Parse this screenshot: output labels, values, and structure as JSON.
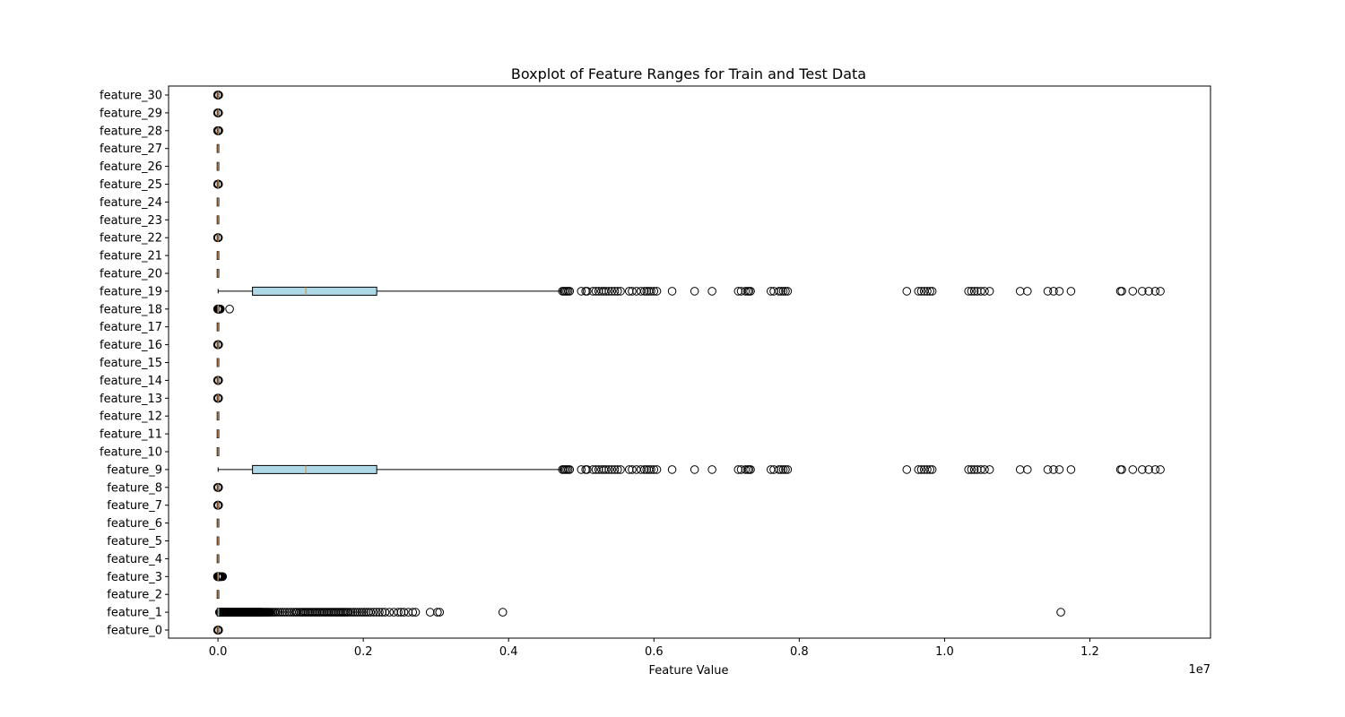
{
  "chart_data": {
    "type": "boxplot",
    "orientation": "horizontal",
    "title": "Boxplot of Feature Ranges for Train and Test Data",
    "xlabel": "Feature Value",
    "ylabel": "",
    "x_offset_label": "1e7",
    "xlim": [
      -0.068,
      1.366
    ],
    "x_scale_factor": 10000000,
    "x_ticks": [
      0,
      0.2,
      0.4,
      0.6,
      0.8,
      1.0,
      1.2
    ],
    "x_tick_labels": [
      "0.0",
      "0.2",
      "0.4",
      "0.6",
      "0.8",
      "1.0",
      "1.2"
    ],
    "categories": [
      "feature_0",
      "feature_1",
      "feature_2",
      "feature_3",
      "feature_4",
      "feature_5",
      "feature_6",
      "feature_7",
      "feature_8",
      "feature_9",
      "feature_10",
      "feature_11",
      "feature_12",
      "feature_13",
      "feature_14",
      "feature_15",
      "feature_16",
      "feature_17",
      "feature_18",
      "feature_19",
      "feature_20",
      "feature_21",
      "feature_22",
      "feature_23",
      "feature_24",
      "feature_25",
      "feature_26",
      "feature_27",
      "feature_28",
      "feature_29",
      "feature_30"
    ],
    "box_fill": "#add8e6",
    "median_color": "#ff7f0e",
    "boxes": [
      {
        "label": "feature_0",
        "whislo": 0,
        "q1": 0,
        "med": 0,
        "q3": 0,
        "whishi": 0.0003,
        "fliers": [
          -0.0006,
          -0.0004,
          0.0005,
          0.0007,
          0.0009
        ]
      },
      {
        "label": "feature_1",
        "whislo": 0.0003,
        "q1": 0.0003,
        "med": 0.0004,
        "q3": 0.0009,
        "whishi": 0.0018,
        "fliers": [
          0.002,
          0.0024,
          0.0028,
          0.0032,
          0.0036,
          0.004,
          0.0044,
          0.0048,
          0.0052,
          0.0056,
          0.006,
          0.0064,
          0.0068,
          0.0072,
          0.0076,
          0.008,
          0.0084,
          0.0088,
          0.0092,
          0.0096,
          0.01,
          0.0105,
          0.011,
          0.0115,
          0.012,
          0.0125,
          0.013,
          0.0135,
          0.014,
          0.0145,
          0.015,
          0.0155,
          0.016,
          0.0165,
          0.017,
          0.0175,
          0.018,
          0.0185,
          0.019,
          0.0195,
          0.02,
          0.0205,
          0.021,
          0.0215,
          0.022,
          0.0225,
          0.023,
          0.0235,
          0.024,
          0.0245,
          0.025,
          0.0255,
          0.026,
          0.0265,
          0.027,
          0.0275,
          0.028,
          0.0285,
          0.029,
          0.0295,
          0.03,
          0.0305,
          0.031,
          0.0315,
          0.032,
          0.0325,
          0.033,
          0.0335,
          0.034,
          0.0345,
          0.035,
          0.0355,
          0.036,
          0.0365,
          0.037,
          0.0375,
          0.038,
          0.0385,
          0.039,
          0.0395,
          0.04,
          0.0405,
          0.041,
          0.0415,
          0.042,
          0.0425,
          0.043,
          0.0435,
          0.044,
          0.0445,
          0.045,
          0.0455,
          0.046,
          0.0465,
          0.047,
          0.0475,
          0.048,
          0.0485,
          0.049,
          0.0495,
          0.05,
          0.0505,
          0.051,
          0.0515,
          0.052,
          0.0525,
          0.053,
          0.0535,
          0.054,
          0.0545,
          0.055,
          0.0555,
          0.056,
          0.0565,
          0.057,
          0.0575,
          0.058,
          0.0585,
          0.059,
          0.0595,
          0.06,
          0.061,
          0.062,
          0.063,
          0.064,
          0.065,
          0.066,
          0.067,
          0.068,
          0.069,
          0.07,
          0.071,
          0.072,
          0.074,
          0.076,
          0.078,
          0.08,
          0.083,
          0.086,
          0.089,
          0.092,
          0.095,
          0.098,
          0.101,
          0.104,
          0.107,
          0.109,
          0.112,
          0.114,
          0.116,
          0.118,
          0.12,
          0.122,
          0.124,
          0.126,
          0.128,
          0.13,
          0.132,
          0.134,
          0.136,
          0.138,
          0.14,
          0.142,
          0.144,
          0.146,
          0.148,
          0.15,
          0.152,
          0.154,
          0.156,
          0.158,
          0.16,
          0.162,
          0.164,
          0.166,
          0.168,
          0.17,
          0.172,
          0.174,
          0.176,
          0.178,
          0.18,
          0.183,
          0.186,
          0.189,
          0.192,
          0.195,
          0.198,
          0.201,
          0.204,
          0.207,
          0.21,
          0.214,
          0.218,
          0.222,
          0.226,
          0.23,
          0.236,
          0.242,
          0.248,
          0.252,
          0.256,
          0.262,
          0.268,
          0.272,
          0.292,
          0.302,
          0.305,
          0.392,
          1.16
        ]
      },
      {
        "label": "feature_2",
        "whislo": 0,
        "q1": 0,
        "med": 0,
        "q3": 0,
        "whishi": 0,
        "fliers": []
      },
      {
        "label": "feature_3",
        "whislo": 0,
        "q1": 0,
        "med": 0.0001,
        "q3": 0.0002,
        "whishi": 0.0004,
        "fliers": [
          -0.0007,
          -0.0005,
          0.0005,
          0.0008,
          0.0011,
          0.0014,
          0.0017,
          0.002,
          0.0024,
          0.0029,
          0.0034,
          0.004,
          0.0047,
          0.0055,
          0.0064
        ]
      },
      {
        "label": "feature_4",
        "whislo": 0,
        "q1": 0,
        "med": 0,
        "q3": 0,
        "whishi": 0,
        "fliers": []
      },
      {
        "label": "feature_5",
        "whislo": 0,
        "q1": 0,
        "med": 0,
        "q3": 0,
        "whishi": 0,
        "fliers": []
      },
      {
        "label": "feature_6",
        "whislo": 0,
        "q1": 0,
        "med": 0,
        "q3": 0,
        "whishi": 0,
        "fliers": []
      },
      {
        "label": "feature_7",
        "whislo": 0,
        "q1": 0,
        "med": 0,
        "q3": 0,
        "whishi": 0.0002,
        "fliers": [
          -0.0006,
          -0.0004,
          0.0004,
          0.0006,
          0.0008
        ]
      },
      {
        "label": "feature_8",
        "whislo": 0,
        "q1": 0,
        "med": 0,
        "q3": 0,
        "whishi": 0.0002,
        "fliers": [
          -0.0006,
          -0.0004,
          0.0004,
          0.0006,
          0.0008
        ]
      },
      {
        "label": "feature_9",
        "whislo": 0.0002,
        "q1": 0.0475,
        "med": 0.121,
        "q3": 0.2185,
        "whishi": 0.472,
        "fliers": [
          0.474,
          0.476,
          0.478,
          0.48,
          0.482,
          0.484,
          0.5,
          0.506,
          0.508,
          0.516,
          0.52,
          0.524,
          0.528,
          0.531,
          0.534,
          0.538,
          0.542,
          0.546,
          0.55,
          0.554,
          0.566,
          0.57,
          0.576,
          0.582,
          0.587,
          0.59,
          0.593,
          0.596,
          0.6,
          0.604,
          0.625,
          0.656,
          0.68,
          0.716,
          0.72,
          0.726,
          0.729,
          0.731,
          0.733,
          0.761,
          0.765,
          0.772,
          0.775,
          0.778,
          0.781,
          0.784,
          0.948,
          0.964,
          0.968,
          0.972,
          0.976,
          0.98,
          0.983,
          1.033,
          1.037,
          1.041,
          1.045,
          1.05,
          1.055,
          1.062,
          1.104,
          1.114,
          1.142,
          1.15,
          1.158,
          1.174,
          1.242,
          1.244,
          1.259,
          1.272,
          1.281,
          1.29,
          1.297
        ]
      },
      {
        "label": "feature_10",
        "whislo": 0,
        "q1": 0,
        "med": 0,
        "q3": 0,
        "whishi": 0,
        "fliers": []
      },
      {
        "label": "feature_11",
        "whislo": 0,
        "q1": 0,
        "med": 0,
        "q3": 0,
        "whishi": 0,
        "fliers": []
      },
      {
        "label": "feature_12",
        "whislo": 0,
        "q1": 0,
        "med": 0,
        "q3": 0,
        "whishi": 0,
        "fliers": []
      },
      {
        "label": "feature_13",
        "whislo": 0,
        "q1": 0,
        "med": 0,
        "q3": 0,
        "whishi": 0.0002,
        "fliers": [
          -0.0006,
          -0.0004,
          0.0004,
          0.0006,
          0.0008
        ]
      },
      {
        "label": "feature_14",
        "whislo": 0,
        "q1": 0,
        "med": 0,
        "q3": 0,
        "whishi": 0.0002,
        "fliers": [
          -0.0006,
          -0.0004,
          0.0004,
          0.0006,
          0.0009
        ]
      },
      {
        "label": "feature_15",
        "whislo": 0,
        "q1": 0,
        "med": 0,
        "q3": 0,
        "whishi": 0,
        "fliers": []
      },
      {
        "label": "feature_16",
        "whislo": 0,
        "q1": 0,
        "med": 0,
        "q3": 0,
        "whishi": 0.0002,
        "fliers": [
          -0.0006,
          -0.0004,
          0.0004,
          0.0006,
          0.0009
        ]
      },
      {
        "label": "feature_17",
        "whislo": 0,
        "q1": 0,
        "med": 0,
        "q3": 0,
        "whishi": 0,
        "fliers": []
      },
      {
        "label": "feature_18",
        "whislo": 0,
        "q1": 0,
        "med": 0.0001,
        "q3": 0.0002,
        "whishi": 0.0004,
        "fliers": [
          -0.0006,
          -0.0004,
          0.0005,
          0.0008,
          0.0011,
          0.0014,
          0.0017,
          0.002,
          0.0024,
          0.0028,
          0.0033,
          0.016
        ]
      },
      {
        "label": "feature_19",
        "whislo": 0.0002,
        "q1": 0.0475,
        "med": 0.121,
        "q3": 0.2185,
        "whishi": 0.472,
        "fliers": [
          0.474,
          0.476,
          0.478,
          0.48,
          0.482,
          0.484,
          0.5,
          0.506,
          0.508,
          0.516,
          0.52,
          0.524,
          0.528,
          0.531,
          0.534,
          0.538,
          0.542,
          0.546,
          0.55,
          0.554,
          0.566,
          0.57,
          0.576,
          0.582,
          0.587,
          0.59,
          0.593,
          0.596,
          0.6,
          0.604,
          0.625,
          0.656,
          0.68,
          0.716,
          0.72,
          0.726,
          0.729,
          0.731,
          0.733,
          0.761,
          0.765,
          0.772,
          0.775,
          0.778,
          0.781,
          0.784,
          0.948,
          0.964,
          0.968,
          0.972,
          0.976,
          0.98,
          0.983,
          1.033,
          1.037,
          1.041,
          1.045,
          1.05,
          1.055,
          1.062,
          1.104,
          1.114,
          1.142,
          1.15,
          1.158,
          1.174,
          1.242,
          1.244,
          1.259,
          1.272,
          1.281,
          1.29,
          1.297
        ]
      },
      {
        "label": "feature_20",
        "whislo": 0,
        "q1": 0,
        "med": 0,
        "q3": 0,
        "whishi": 0,
        "fliers": []
      },
      {
        "label": "feature_21",
        "whislo": 0,
        "q1": 0,
        "med": 0,
        "q3": 0,
        "whishi": 0,
        "fliers": []
      },
      {
        "label": "feature_22",
        "whislo": 0,
        "q1": 0,
        "med": 0,
        "q3": 0,
        "whishi": 0.0002,
        "fliers": [
          -0.0006,
          -0.0004,
          0.0004,
          0.0006
        ]
      },
      {
        "label": "feature_23",
        "whislo": 0,
        "q1": 0,
        "med": 0,
        "q3": 0,
        "whishi": 0,
        "fliers": []
      },
      {
        "label": "feature_24",
        "whislo": 0,
        "q1": 0,
        "med": 0,
        "q3": 0,
        "whishi": 0,
        "fliers": []
      },
      {
        "label": "feature_25",
        "whislo": 0,
        "q1": 0,
        "med": 0,
        "q3": 0,
        "whishi": 0.0002,
        "fliers": [
          -0.0006,
          -0.0004,
          0.0004,
          0.0006,
          0.0008
        ]
      },
      {
        "label": "feature_26",
        "whislo": 0,
        "q1": 0,
        "med": 0,
        "q3": 0,
        "whishi": 0,
        "fliers": []
      },
      {
        "label": "feature_27",
        "whislo": 0,
        "q1": 0,
        "med": 0,
        "q3": 0,
        "whishi": 0,
        "fliers": []
      },
      {
        "label": "feature_28",
        "whislo": 0,
        "q1": 0,
        "med": 0,
        "q3": 0,
        "whishi": 0.0002,
        "fliers": [
          -0.0006,
          -0.0004,
          0.0004,
          0.0006,
          0.0009,
          0.0012
        ]
      },
      {
        "label": "feature_29",
        "whislo": 0,
        "q1": 0,
        "med": 0,
        "q3": 0,
        "whishi": 0.0002,
        "fliers": [
          -0.0006,
          -0.0004,
          0.0004,
          0.0006,
          0.0008
        ]
      },
      {
        "label": "feature_30",
        "whislo": 0,
        "q1": 0,
        "med": 0,
        "q3": 0,
        "whishi": 0.0002,
        "fliers": [
          -0.0006,
          -0.0004,
          0.0004,
          0.0006,
          0.0008,
          0.001
        ]
      }
    ],
    "grid": false,
    "legend": "none"
  }
}
